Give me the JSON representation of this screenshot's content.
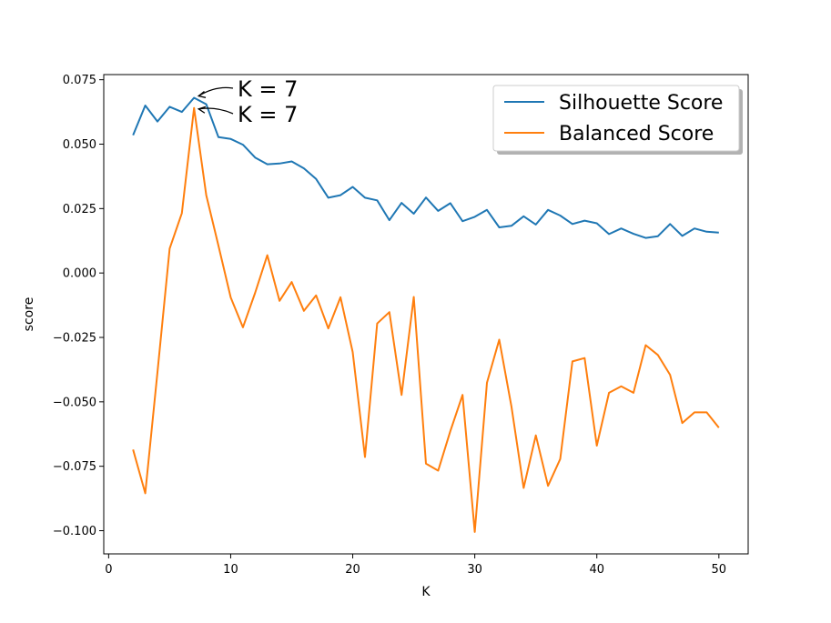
{
  "chart_data": {
    "type": "line",
    "xlabel": "K",
    "ylabel": "score",
    "xlim": [
      -0.4,
      52.4
    ],
    "ylim": [
      -0.109,
      0.077
    ],
    "x_ticks": [
      0,
      10,
      20,
      30,
      40,
      50
    ],
    "x_tick_labels": [
      "0",
      "10",
      "20",
      "30",
      "40",
      "50"
    ],
    "y_ticks": [
      0.075,
      0.05,
      0.025,
      0.0,
      -0.025,
      -0.05,
      -0.075,
      -0.1
    ],
    "y_tick_labels": [
      "0.075",
      "0.050",
      "0.025",
      "0.000",
      "−0.025",
      "−0.050",
      "−0.075",
      "−0.100"
    ],
    "grid": false,
    "legend": "top-right",
    "x": [
      2,
      3,
      4,
      5,
      6,
      7,
      8,
      9,
      10,
      11,
      12,
      13,
      14,
      15,
      16,
      17,
      18,
      19,
      20,
      21,
      22,
      23,
      24,
      25,
      26,
      27,
      28,
      29,
      30,
      31,
      32,
      33,
      34,
      35,
      36,
      37,
      38,
      39,
      40,
      41,
      42,
      43,
      44,
      45,
      46,
      47,
      48,
      49,
      50
    ],
    "series": [
      {
        "name": "Silhouette Score",
        "color": "#1f77b4",
        "values": [
          0.0535,
          0.065,
          0.0588,
          0.0645,
          0.0625,
          0.068,
          0.0655,
          0.0527,
          0.052,
          0.0498,
          0.0448,
          0.0422,
          0.0425,
          0.0433,
          0.0406,
          0.0365,
          0.0292,
          0.0302,
          0.0334,
          0.0292,
          0.0282,
          0.0205,
          0.0272,
          0.023,
          0.0293,
          0.0241,
          0.0271,
          0.0201,
          0.0218,
          0.0245,
          0.0177,
          0.0183,
          0.022,
          0.0188,
          0.0245,
          0.0223,
          0.019,
          0.0203,
          0.0193,
          0.0151,
          0.0173,
          0.0152,
          0.0136,
          0.0143,
          0.019,
          0.0144,
          0.0173,
          0.016,
          0.0157
        ]
      },
      {
        "name": "Balanced Score",
        "color": "#ff7f0e",
        "values": [
          -0.0685,
          -0.0855,
          -0.0385,
          0.0095,
          0.0232,
          0.064,
          0.0302,
          0.0106,
          -0.0095,
          -0.0211,
          -0.0077,
          0.0069,
          -0.0108,
          -0.0035,
          -0.0147,
          -0.0087,
          -0.0215,
          -0.0094,
          -0.0307,
          -0.0714,
          -0.0196,
          -0.0152,
          -0.0473,
          -0.0093,
          -0.074,
          -0.0767,
          -0.0613,
          -0.0473,
          -0.1005,
          -0.0426,
          -0.0259,
          -0.0518,
          -0.0834,
          -0.063,
          -0.0826,
          -0.0722,
          -0.0343,
          -0.033,
          -0.067,
          -0.0465,
          -0.044,
          -0.0465,
          -0.028,
          -0.0318,
          -0.0395,
          -0.0582,
          -0.0541,
          -0.0541,
          -0.06
        ]
      }
    ],
    "annotations": [
      {
        "text": "K = 7",
        "x": 7,
        "y": 0.068
      },
      {
        "text": "K = 7",
        "x": 7,
        "y": 0.064
      }
    ]
  }
}
